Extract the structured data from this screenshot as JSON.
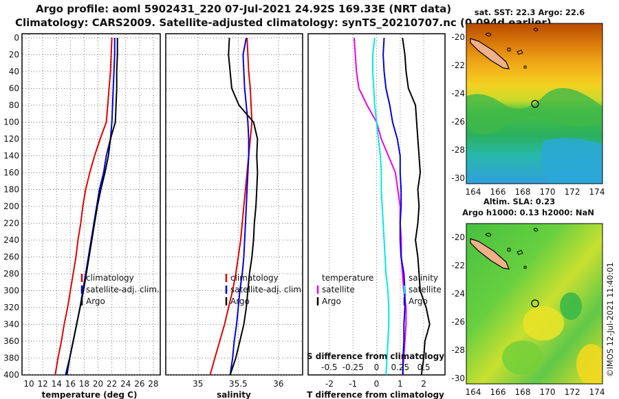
{
  "header": {
    "line1": "Argo profile: aoml 5902431_220 07-Jul-2021 24.92S 169.33E (NRT data)",
    "line2": "Climatology: CARS2009. Satellite-adjusted climatology: synTS_20210707.nc (0.094d earlier)"
  },
  "colors": {
    "red": "#e00000",
    "blue": "#0000e0",
    "black": "#000000",
    "magenta": "#ee00ee",
    "cyan": "#00e8e8"
  },
  "chart_data": [
    {
      "type": "line",
      "id": "temperature",
      "xlabel": "temperature (deg C)",
      "xlim": [
        9,
        29
      ],
      "xticks": [
        "10",
        "12",
        "14",
        "16",
        "18",
        "20",
        "22",
        "24",
        "26",
        "28"
      ],
      "xtick_values": [
        10,
        12,
        14,
        16,
        18,
        20,
        22,
        24,
        26,
        28
      ],
      "ylim": [
        400,
        0
      ],
      "yticks": [
        "0",
        "20",
        "40",
        "60",
        "80",
        "100",
        "120",
        "140",
        "160",
        "180",
        "200",
        "220",
        "240",
        "260",
        "280",
        "300",
        "320",
        "340",
        "360",
        "380",
        "400"
      ],
      "depth": [
        0,
        20,
        40,
        60,
        80,
        100,
        120,
        140,
        160,
        180,
        200,
        220,
        240,
        260,
        280,
        300,
        320,
        340,
        360,
        380,
        400
      ],
      "grid": true,
      "legend": [
        "climatology",
        "satellite-adj. clim.",
        "Argo"
      ],
      "series": [
        {
          "name": "climatology",
          "color": "red",
          "values": [
            22.0,
            21.9,
            21.8,
            21.6,
            21.4,
            21.2,
            20.3,
            19.5,
            18.8,
            18.2,
            17.8,
            17.5,
            17.1,
            16.8,
            16.4,
            16.0,
            15.6,
            15.1,
            14.7,
            14.2,
            13.8
          ]
        },
        {
          "name": "satellite-adj. clim.",
          "color": "blue",
          "values": [
            22.4,
            22.4,
            22.3,
            22.2,
            22.1,
            22.0,
            21.8,
            21.2,
            20.8,
            20.2,
            19.8,
            19.4,
            19.0,
            18.6,
            18.2,
            17.8,
            17.4,
            16.9,
            16.4,
            15.9,
            15.3
          ]
        },
        {
          "name": "Argo",
          "color": "black",
          "values": [
            22.8,
            22.8,
            22.7,
            22.7,
            22.6,
            22.5,
            21.8,
            21.5,
            21.0,
            20.4,
            19.9,
            19.5,
            19.1,
            18.7,
            18.3,
            17.9,
            17.4,
            16.9,
            16.4,
            15.9,
            15.5
          ]
        }
      ]
    },
    {
      "type": "line",
      "id": "salinity",
      "xlabel": "salinity",
      "xlim": [
        34.6,
        36.3
      ],
      "xticks": [
        "35",
        "35.5",
        "36"
      ],
      "xtick_values": [
        35,
        35.5,
        36
      ],
      "ylim": [
        400,
        0
      ],
      "depth": [
        0,
        20,
        40,
        60,
        80,
        100,
        120,
        140,
        160,
        180,
        200,
        220,
        240,
        260,
        280,
        300,
        320,
        340,
        360,
        380,
        400
      ],
      "grid": true,
      "legend": [
        "climatology",
        "satellite-adj. clim.",
        "Argo"
      ],
      "series": [
        {
          "name": "climatology",
          "color": "red",
          "values": [
            35.61,
            35.62,
            35.63,
            35.65,
            35.66,
            35.67,
            35.65,
            35.63,
            35.61,
            35.59,
            35.57,
            35.55,
            35.53,
            35.5,
            35.47,
            35.43,
            35.38,
            35.33,
            35.27,
            35.21,
            35.15
          ]
        },
        {
          "name": "satellite-adj. clim.",
          "color": "blue",
          "values": [
            35.6,
            35.56,
            35.57,
            35.58,
            35.6,
            35.62,
            35.63,
            35.63,
            35.62,
            35.61,
            35.6,
            35.59,
            35.58,
            35.57,
            35.55,
            35.52,
            35.5,
            35.48,
            35.45,
            35.43,
            35.4
          ]
        },
        {
          "name": "Argo",
          "color": "black",
          "values": [
            35.39,
            35.38,
            35.4,
            35.42,
            35.51,
            35.69,
            35.74,
            35.73,
            35.74,
            35.73,
            35.72,
            35.7,
            35.69,
            35.67,
            35.64,
            35.62,
            35.6,
            35.57,
            35.52,
            35.47,
            35.4
          ]
        }
      ]
    },
    {
      "type": "line",
      "id": "difference",
      "xlabel": "T difference from climatology",
      "xlabel_top": "S difference from climatology",
      "xlim": [
        -2.9,
        2.9
      ],
      "xticks": [
        "-2",
        "-1",
        "0",
        "1",
        "2"
      ],
      "xtick_values": [
        -2,
        -1,
        0,
        1,
        2
      ],
      "xticks_top": [
        "-0.5",
        "-0.25",
        "0",
        "0.25",
        "0.5"
      ],
      "xticks_top_values": [
        -0.5,
        -0.25,
        0,
        0.25,
        0.5
      ],
      "ylim": [
        400,
        0
      ],
      "depth": [
        0,
        20,
        40,
        60,
        80,
        100,
        120,
        140,
        160,
        180,
        200,
        220,
        240,
        260,
        280,
        300,
        320,
        340,
        360,
        380,
        400
      ],
      "legend_left": {
        "title": "temperature",
        "items": [
          "satellite",
          "Argo"
        ]
      },
      "legend_right": {
        "title": "salinity",
        "items": [
          "satellite",
          "Argo"
        ]
      },
      "series": [
        {
          "name": "temperature satellite",
          "color": "magenta",
          "values": [
            -0.95,
            -0.9,
            -0.85,
            -0.75,
            -0.4,
            0.0,
            0.2,
            0.5,
            0.8,
            0.9,
            1.0,
            1.0,
            1.05,
            1.05,
            1.1,
            1.15,
            1.25,
            1.25,
            1.2,
            1.15,
            1.1
          ]
        },
        {
          "name": "temperature Argo",
          "color": "black",
          "values": [
            1.1,
            1.2,
            1.25,
            1.35,
            1.65,
            1.7,
            1.75,
            1.8,
            1.85,
            1.75,
            1.8,
            1.75,
            1.65,
            1.75,
            1.8,
            1.85,
            2.1,
            2.25,
            2.05,
            2.0,
            1.9
          ]
        },
        {
          "name": "salinity satellite",
          "color": "cyan",
          "values": [
            -0.02,
            -0.04,
            -0.04,
            -0.03,
            -0.02,
            0.0,
            0.02,
            0.04,
            0.05,
            0.05,
            0.06,
            0.07,
            0.08,
            0.09,
            0.1,
            0.12,
            0.13,
            0.13,
            0.12,
            0.11,
            0.1
          ]
        },
        {
          "name": "salinity Argo",
          "color": "blue",
          "values": [
            0.08,
            0.07,
            0.08,
            0.1,
            0.14,
            0.17,
            0.22,
            0.25,
            0.25,
            0.26,
            0.26,
            0.25,
            0.25,
            0.26,
            0.29,
            0.3,
            0.3,
            0.29,
            0.29,
            0.28,
            0.28
          ]
        }
      ]
    }
  ],
  "maps": {
    "top": {
      "title": "sat. SST: 22.3 Argo: 22.6",
      "xticks": [
        "164",
        "166",
        "168",
        "170",
        "172",
        "174"
      ],
      "yticks": [
        "-20",
        "-22",
        "-24",
        "-26",
        "-28",
        "-30"
      ]
    },
    "bottom": {
      "title1": "Altim. SLA: 0.23",
      "title2": "Argo h1000: 0.13 h2000: NaN",
      "xticks": [
        "164",
        "166",
        "168",
        "170",
        "172",
        "174"
      ],
      "yticks": [
        "-20",
        "-22",
        "-24",
        "-26",
        "-28",
        "-30"
      ]
    }
  },
  "footer": {
    "imos": "©IMOS 12-Jul-2021 11:40:01"
  }
}
